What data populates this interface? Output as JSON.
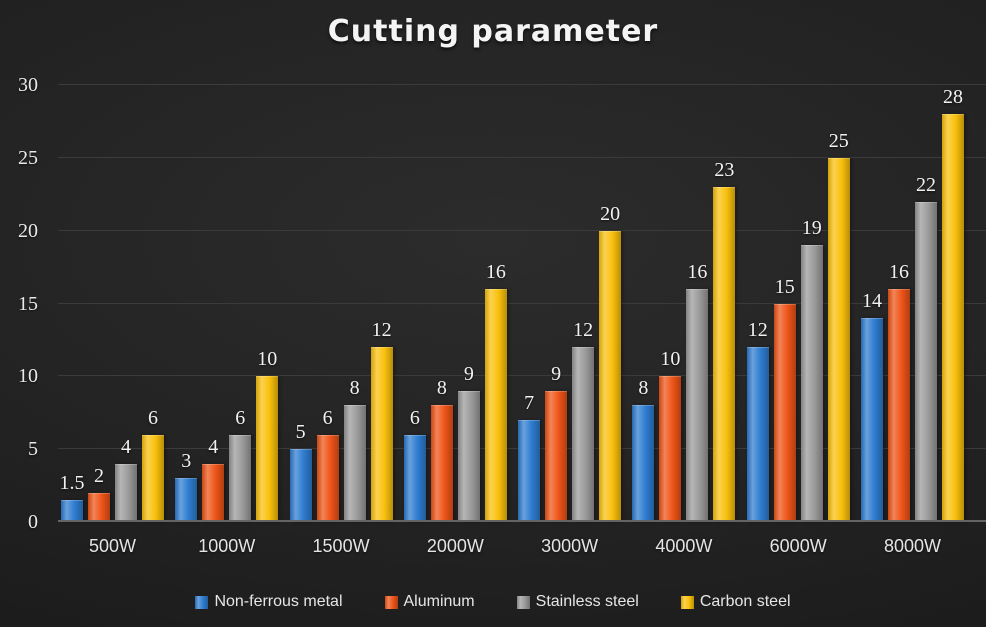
{
  "chart_data": {
    "type": "bar",
    "title": "Cutting parameter",
    "categories": [
      "500W",
      "1000W",
      "1500W",
      "2000W",
      "3000W",
      "4000W",
      "6000W",
      "8000W"
    ],
    "series": [
      {
        "name": "Non-ferrous metal",
        "color": "#2e7cd0",
        "values": [
          1.5,
          3,
          5,
          6,
          7,
          8,
          12,
          14
        ]
      },
      {
        "name": "Aluminum",
        "color": "#ee5418",
        "values": [
          2,
          4,
          6,
          8,
          9,
          10,
          15,
          16
        ]
      },
      {
        "name": "Stainless steel",
        "color": "#9a9a9a",
        "values": [
          4,
          6,
          8,
          9,
          12,
          16,
          19,
          22
        ]
      },
      {
        "name": "Carbon steel",
        "color": "#f9c00c",
        "values": [
          6,
          10,
          12,
          16,
          20,
          23,
          25,
          28
        ]
      }
    ],
    "ylim": [
      0,
      30
    ],
    "yticks": [
      0,
      5,
      10,
      15,
      20,
      25,
      30
    ],
    "grid": true,
    "legend_position": "bottom",
    "background_color": "#232323",
    "text_color": "#ececec"
  }
}
